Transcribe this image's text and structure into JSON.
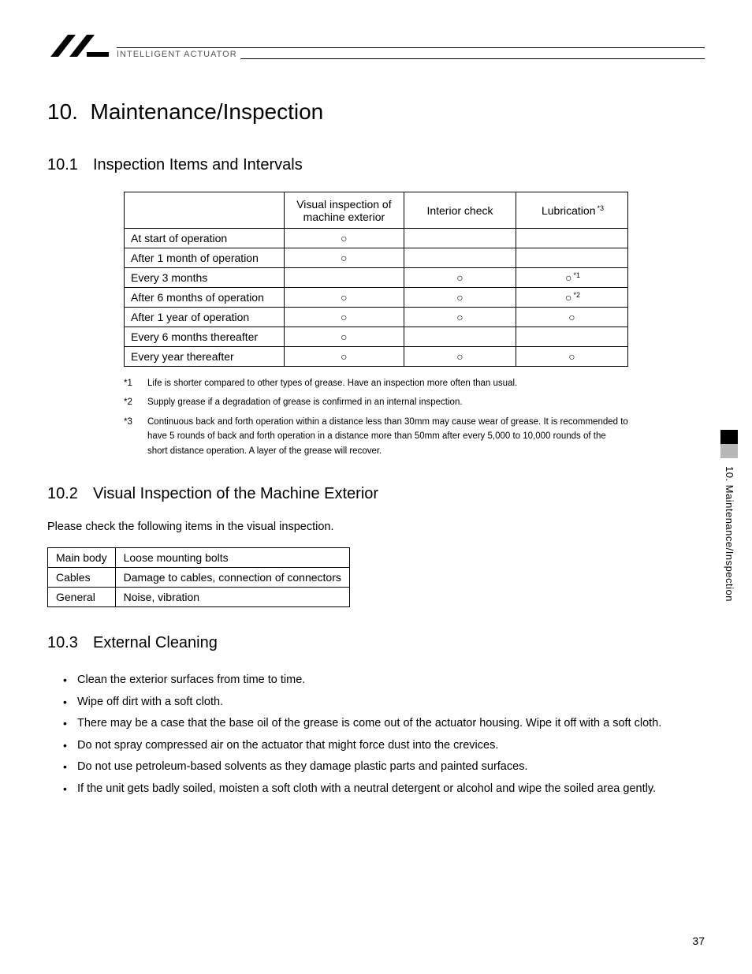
{
  "header": {
    "brand": "INTELLIGENT ACTUATOR"
  },
  "chapter": {
    "num": "10.",
    "title": "Maintenance/Inspection"
  },
  "section1": {
    "num": "10.1",
    "title": "Inspection Items and Intervals",
    "cols": [
      "",
      "Visual inspection of machine exterior",
      "Interior check",
      "Lubrication"
    ],
    "lubSup": "*3",
    "rows": [
      {
        "label": "At start of operation",
        "c1": "○",
        "c2": "",
        "c3": "",
        "sup": ""
      },
      {
        "label": "After 1 month of operation",
        "c1": "○",
        "c2": "",
        "c3": "",
        "sup": ""
      },
      {
        "label": "Every 3 months",
        "c1": "",
        "c2": "○",
        "c3": "○",
        "sup": "*1"
      },
      {
        "label": "After 6 months of operation",
        "c1": "○",
        "c2": "○",
        "c3": "○",
        "sup": "*2"
      },
      {
        "label": "After 1 year of operation",
        "c1": "○",
        "c2": "○",
        "c3": "○",
        "sup": ""
      },
      {
        "label": "Every 6 months thereafter",
        "c1": "○",
        "c2": "",
        "c3": "",
        "sup": ""
      },
      {
        "label": "Every year thereafter",
        "c1": "○",
        "c2": "○",
        "c3": "○",
        "sup": ""
      }
    ],
    "notes": [
      {
        "k": "*1",
        "t": "Life is shorter compared to other types of grease. Have an inspection more often than usual."
      },
      {
        "k": "*2",
        "t": "Supply grease if a degradation of grease is confirmed in an internal inspection."
      },
      {
        "k": "*3",
        "t": "Continuous back and forth operation within a distance less than 30mm may cause wear of grease. It is recommended to have 5 rounds of back and forth operation in a distance more than 50mm after every 5,000 to 10,000 rounds of the short distance operation. A layer of the grease will recover."
      }
    ]
  },
  "section2": {
    "num": "10.2",
    "title": "Visual Inspection of the Machine Exterior",
    "intro": "Please check the following items in the visual inspection.",
    "rows": [
      {
        "a": "Main body",
        "b": "Loose mounting bolts"
      },
      {
        "a": "Cables",
        "b": "Damage to cables, connection of connectors"
      },
      {
        "a": "General",
        "b": "Noise, vibration"
      }
    ]
  },
  "section3": {
    "num": "10.3",
    "title": "External Cleaning",
    "items": [
      "Clean the exterior surfaces from time to time.",
      "Wipe off dirt with a soft cloth.",
      "There may be a case that the base oil of the grease is come out of the actuator housing. Wipe it off with a soft cloth.",
      "Do not spray compressed air on the actuator that might force dust into the crevices.",
      "Do not use petroleum-based solvents as they damage plastic parts and painted surfaces.",
      "If the unit gets badly soiled, moisten a soft cloth with a neutral detergent or alcohol and wipe the soiled area gently."
    ]
  },
  "sideLabel": "10. Maintenance/Inspection",
  "pageNum": "37"
}
